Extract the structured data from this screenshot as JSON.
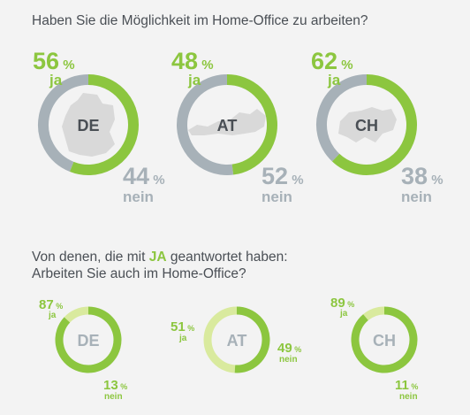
{
  "question1": "Haben Sie die Möglichkeit im Home-Office zu arbeiten?",
  "question2": {
    "pre": "Von denen, die mit ",
    "highlight": "JA",
    "post": " geantwortet haben:",
    "line2": "Arbeiten Sie auch im Home-Office?"
  },
  "colors": {
    "yes": "#8cc63f",
    "no": "#a7b1b8",
    "no_light": "#d9ea9e",
    "country_fill": "#d9d9d9",
    "country_text_top": "#4a4f55",
    "country_text_bottom": "#a7b1b8"
  },
  "chart_data": [
    {
      "type": "pie",
      "variant": "donut",
      "slices": [
        {
          "country": "DE",
          "ja": 56,
          "nein": 44
        },
        {
          "country": "AT",
          "ja": 48,
          "nein": 52
        },
        {
          "country": "CH",
          "ja": 62,
          "nein": 38
        }
      ],
      "labels": {
        "yes": "ja",
        "no": "nein",
        "unit": "%"
      }
    },
    {
      "type": "pie",
      "variant": "donut",
      "slices": [
        {
          "country": "DE",
          "ja": 87,
          "nein": 13
        },
        {
          "country": "AT",
          "ja": 51,
          "nein": 49
        },
        {
          "country": "CH",
          "ja": 89,
          "nein": 11
        }
      ],
      "labels": {
        "yes": "ja",
        "no": "nein",
        "unit": "%"
      }
    }
  ]
}
